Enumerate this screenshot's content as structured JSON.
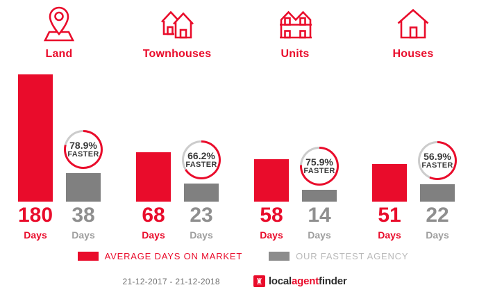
{
  "labels": {
    "days": "Days",
    "faster": "FASTER"
  },
  "legend": {
    "avg": "AVERAGE DAYS ON MARKET",
    "fastest": "OUR FASTEST AGENCY"
  },
  "footer": {
    "date_range": "21-12-2017 - 21-12-2018",
    "logo": {
      "icon": "rook-icon",
      "part1": "local",
      "part2": "agent",
      "part3": "finder"
    }
  },
  "colors": {
    "red": "#e90c2b",
    "bar_gray": "#808080",
    "ring_gray": "#cccccc",
    "badge_text": "#3a3a3a",
    "num_gray": "#8f8f8f",
    "legend_gray": "#b9b9b9",
    "date_gray": "#707070"
  },
  "chart_data": {
    "type": "bar",
    "unit": "Days",
    "categories": [
      "Land",
      "Townhouses",
      "Units",
      "Houses"
    ],
    "series": [
      {
        "name": "AVERAGE DAYS ON MARKET",
        "color": "#e90c2b",
        "values": [
          180,
          68,
          58,
          51
        ]
      },
      {
        "name": "OUR FASTEST AGENCY",
        "color": "#808080",
        "values": [
          38,
          23,
          14,
          22
        ]
      }
    ],
    "faster_pct": [
      "78.9%",
      "66.2%",
      "75.9%",
      "56.9%"
    ],
    "date_range": "21-12-2017 - 21-12-2018",
    "legend_position": "bottom",
    "ylim": [
      0,
      180
    ],
    "grid": false,
    "groups": [
      {
        "label": "Land",
        "avg_days": "180",
        "fast_days": "38",
        "faster_pct": "78.9%"
      },
      {
        "label": "Townhouses",
        "avg_days": "68",
        "fast_days": "23",
        "faster_pct": "66.2%"
      },
      {
        "label": "Units",
        "avg_days": "58",
        "fast_days": "14",
        "faster_pct": "75.9%"
      },
      {
        "label": "Houses",
        "avg_days": "51",
        "fast_days": "22",
        "faster_pct": "56.9%"
      }
    ]
  }
}
